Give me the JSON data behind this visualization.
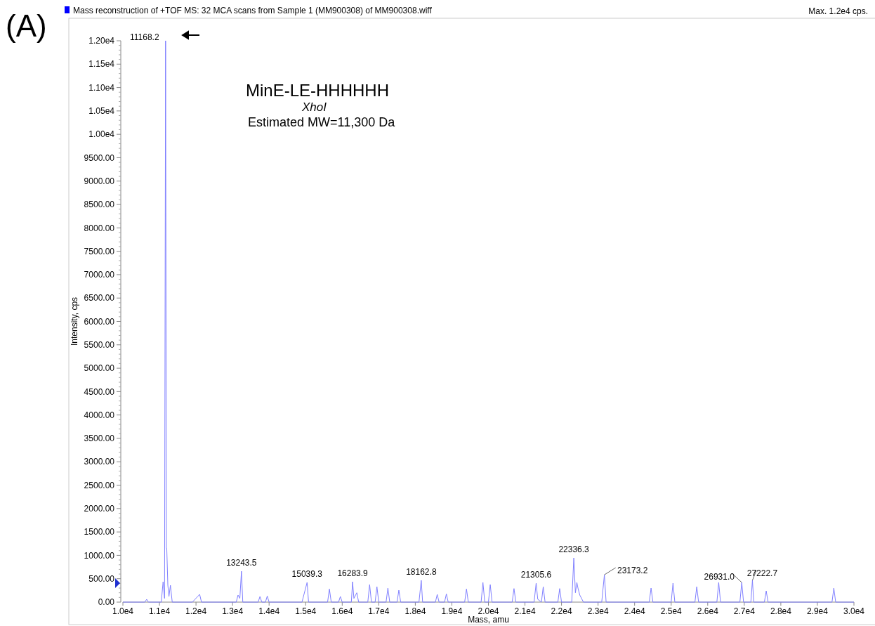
{
  "chart_data": {
    "type": "line",
    "title": "Mass reconstruction of +TOF MS: 32 MCA scans from Sample 1 (MM900308) of MM900308.wiff",
    "xlabel": "Mass, amu",
    "ylabel": "Intensity, cps",
    "xlim": [
      10000,
      30000
    ],
    "xticks": [
      {
        "value": 10000,
        "label": "1.0e4"
      },
      {
        "value": 11000,
        "label": "1.1e4"
      },
      {
        "value": 12000,
        "label": "1.2e4"
      },
      {
        "value": 13000,
        "label": "1.3e4"
      },
      {
        "value": 14000,
        "label": "1.4e4"
      },
      {
        "value": 15000,
        "label": "1.5e4"
      },
      {
        "value": 16000,
        "label": "1.6e4"
      },
      {
        "value": 17000,
        "label": "1.7e4"
      },
      {
        "value": 18000,
        "label": "1.8e4"
      },
      {
        "value": 19000,
        "label": "1.9e4"
      },
      {
        "value": 20000,
        "label": "2.0e4"
      },
      {
        "value": 21000,
        "label": "2.1e4"
      },
      {
        "value": 22000,
        "label": "2.2e4"
      },
      {
        "value": 23000,
        "label": "2.3e4"
      },
      {
        "value": 24000,
        "label": "2.4e4"
      },
      {
        "value": 25000,
        "label": "2.5e4"
      },
      {
        "value": 26000,
        "label": "2.6e4"
      },
      {
        "value": 27000,
        "label": "2.7e4"
      },
      {
        "value": 28000,
        "label": "2.8e4"
      },
      {
        "value": 29000,
        "label": "2.9e4"
      },
      {
        "value": 30000,
        "label": "3.0e4"
      }
    ],
    "ylim": [
      0,
      12000
    ],
    "yticks": [
      {
        "value": 0,
        "label": "0.00"
      },
      {
        "value": 500,
        "label": "500.00"
      },
      {
        "value": 1000,
        "label": "1000.00"
      },
      {
        "value": 1500,
        "label": "1500.00"
      },
      {
        "value": 2000,
        "label": "2000.00"
      },
      {
        "value": 2500,
        "label": "2500.00"
      },
      {
        "value": 3000,
        "label": "3000.00"
      },
      {
        "value": 3500,
        "label": "3500.00"
      },
      {
        "value": 4000,
        "label": "4000.00"
      },
      {
        "value": 4500,
        "label": "4500.00"
      },
      {
        "value": 5000,
        "label": "5000.00"
      },
      {
        "value": 5500,
        "label": "5500.00"
      },
      {
        "value": 6000,
        "label": "6000.00"
      },
      {
        "value": 6500,
        "label": "6500.00"
      },
      {
        "value": 7000,
        "label": "7000.00"
      },
      {
        "value": 7500,
        "label": "7500.00"
      },
      {
        "value": 8000,
        "label": "8000.00"
      },
      {
        "value": 8500,
        "label": "8500.00"
      },
      {
        "value": 9000,
        "label": "9000.00"
      },
      {
        "value": 9500,
        "label": "9500.00"
      },
      {
        "value": 10000,
        "label": "1.00e4"
      },
      {
        "value": 10500,
        "label": "1.05e4"
      },
      {
        "value": 11000,
        "label": "1.10e4"
      },
      {
        "value": 11500,
        "label": "1.15e4"
      },
      {
        "value": 12000,
        "label": "1.20e4"
      }
    ],
    "grid": false,
    "marker": "none",
    "line_style": "solid",
    "series": [
      {
        "color": "#8080ff",
        "x": [
          10000,
          10600,
          10650,
          10700,
          11050,
          11100,
          11140,
          11168.2,
          11190,
          11200,
          11230,
          11260,
          11300,
          11350,
          11900,
          12100,
          12150,
          13100,
          13150,
          13200,
          13243.5,
          13280,
          13700,
          13750,
          13800,
          13900,
          13950,
          14000,
          14900,
          15039.3,
          15080,
          15600,
          15650,
          15700,
          15900,
          15950,
          16000,
          16250,
          16283.9,
          16320,
          16400,
          16450,
          16700,
          16750,
          16800,
          16900,
          16950,
          17000,
          17200,
          17250,
          17300,
          17500,
          17550,
          17600,
          18100,
          18162.8,
          18200,
          18550,
          18600,
          18650,
          18800,
          18850,
          18900,
          19350,
          19400,
          19450,
          19800,
          19850,
          19900,
          20000,
          20050,
          20100,
          20650,
          20700,
          20750,
          21250,
          21305.6,
          21350,
          21450,
          21500,
          21550,
          21900,
          21950,
          22000,
          22280,
          22336.3,
          22380,
          22420,
          22450,
          22500,
          22600,
          23100,
          23173.2,
          23220,
          24400,
          24450,
          24500,
          25000,
          25050,
          25100,
          25650,
          25700,
          25750,
          26250,
          26300,
          26350,
          26880,
          26931.0,
          26980,
          27180,
          27222.7,
          27260,
          27550,
          27600,
          27650,
          29400,
          29450,
          29500,
          30000
        ],
        "values": [
          0,
          0,
          60,
          0,
          0,
          435,
          80,
          12000,
          1150,
          1150,
          360,
          120,
          360,
          0,
          0,
          165,
          0,
          0,
          150,
          80,
          660,
          0,
          0,
          120,
          0,
          0,
          130,
          0,
          0,
          420,
          0,
          0,
          280,
          0,
          0,
          120,
          0,
          0,
          435,
          80,
          200,
          0,
          0,
          375,
          0,
          0,
          330,
          0,
          0,
          300,
          0,
          0,
          255,
          0,
          0,
          465,
          0,
          0,
          165,
          0,
          0,
          175,
          0,
          0,
          280,
          0,
          0,
          420,
          0,
          0,
          375,
          0,
          0,
          290,
          0,
          0,
          405,
          60,
          0,
          330,
          0,
          0,
          290,
          0,
          0,
          945,
          200,
          420,
          300,
          150,
          0,
          0,
          585,
          0,
          0,
          300,
          0,
          0,
          405,
          0,
          0,
          330,
          0,
          0,
          420,
          0,
          0,
          420,
          0,
          0,
          465,
          0,
          0,
          240,
          0,
          0,
          300,
          0,
          0
        ]
      }
    ],
    "annotations": [
      "(A)",
      "Max. 1.2e4 cps.",
      "MinE-LE-HHHHHH",
      "XhoI",
      "Estimated MW=11,300 Da",
      {
        "text": "11168.2",
        "x": 11168.2,
        "y": 12000
      },
      {
        "text": "13243.5",
        "x": 13243.5,
        "y": 660
      },
      {
        "text": "15039.3",
        "x": 15039.3,
        "y": 420
      },
      {
        "text": "16283.9",
        "x": 16283.9,
        "y": 435
      },
      {
        "text": "18162.8",
        "x": 18162.8,
        "y": 465
      },
      {
        "text": "21305.6",
        "x": 21305.6,
        "y": 405
      },
      {
        "text": "22336.3",
        "x": 22336.3,
        "y": 945
      },
      {
        "text": "23173.2",
        "x": 23173.2,
        "y": 585
      },
      {
        "text": "26931.0",
        "x": 26931.0,
        "y": 420
      },
      {
        "text": "27222.7",
        "x": 27222.7,
        "y": 465
      }
    ]
  }
}
